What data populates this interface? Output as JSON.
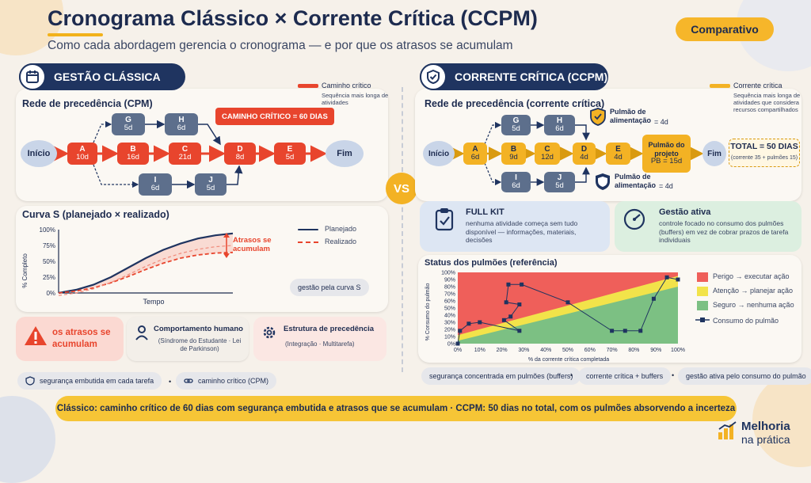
{
  "header": {
    "title": "Cronograma Clássico × Corrente Crítica (CCPM)",
    "subtitle": "Como cada abordagem gerencia o cronograma — e por que os atrasos se acumulam",
    "badge": "Comparativo"
  },
  "vs_label": "VS",
  "colors": {
    "navy": "#1f3460",
    "red": "#e8452d",
    "amber": "#f3b224",
    "slate": "#5d6f8c",
    "green": "#7cc083",
    "yellow": "#f2e34a",
    "danger": "#ef5f5a"
  },
  "classic": {
    "section_title": "GESTÃO CLÁSSICA",
    "section_icon": "calendar-icon",
    "legend_title": "Caminho crítico",
    "legend_desc": "Sequência mais longa de atividades",
    "network_title": "Rede de precedência (CPM)",
    "critical_callout": "CAMINHO CRÍTICO = 60 DIAS",
    "nodes": {
      "start": "Início",
      "end": "Fim",
      "A": {
        "name": "A",
        "dur": "10d"
      },
      "B": {
        "name": "B",
        "dur": "16d"
      },
      "C": {
        "name": "C",
        "dur": "21d"
      },
      "D": {
        "name": "D",
        "dur": "8d"
      },
      "E": {
        "name": "E",
        "dur": "5d"
      },
      "G": {
        "name": "G",
        "dur": "5d"
      },
      "H": {
        "name": "H",
        "dur": "6d"
      },
      "I": {
        "name": "I",
        "dur": "6d"
      },
      "J": {
        "name": "J",
        "dur": "5d"
      }
    },
    "scurve": {
      "title": "Curva S (planejado × realizado)",
      "y_axis_label": "% Completo",
      "x_axis_label": "Tempo",
      "y_ticks": [
        "100%",
        "75%",
        "50%",
        "25%",
        "0%"
      ],
      "legend_planned": "Planejado",
      "legend_actual": "Realizado",
      "annotation": "Atrasos se acumulam",
      "note": "gestão pela curva S"
    },
    "cards": {
      "alert": "os atrasos se acumulam",
      "human_title": "Comportamento humano",
      "human_desc": "(Síndrome do Estudante · Lei de Parkinson)",
      "structure_title": "Estrutura de precedência",
      "structure_desc": "(Integração · Multitarefa)"
    },
    "chips": [
      "segurança embutida em cada tarefa",
      "caminho crítico (CPM)"
    ]
  },
  "ccpm": {
    "section_title": "CORRENTE CRÍTICA (CCPM)",
    "section_icon": "shield-check-icon",
    "legend_title": "Corrente crítica",
    "legend_desc": "Sequência mais longa de atividades que considera recursos compartilhados",
    "network_title": "Rede de precedência (corrente crítica)",
    "nodes": {
      "start": "Início",
      "end": "Fim",
      "A": {
        "name": "A",
        "dur": "6d"
      },
      "B": {
        "name": "B",
        "dur": "9d"
      },
      "C": {
        "name": "C",
        "dur": "12d"
      },
      "D": {
        "name": "D",
        "dur": "4d"
      },
      "E": {
        "name": "E",
        "dur": "4d"
      },
      "G": {
        "name": "G",
        "dur": "5d"
      },
      "H": {
        "name": "H",
        "dur": "6d"
      },
      "I": {
        "name": "I",
        "dur": "6d"
      },
      "J": {
        "name": "J",
        "dur": "5d"
      },
      "PB": {
        "name": "Pulmão do projeto",
        "dur": "PB = 15d"
      }
    },
    "feeding_buffer_top": {
      "label": "Pulmão de alimentação",
      "value": "= 4d"
    },
    "feeding_buffer_bottom": {
      "label": "Pulmão de alimentação",
      "value": "= 4d"
    },
    "total_title": "TOTAL = 50 DIAS",
    "total_sub": "(corrente 35 + pulmões 15)",
    "fullkit": {
      "title": "FULL KIT",
      "desc": "nenhuma atividade começa sem tudo disponível — informações, materiais, decisões"
    },
    "active": {
      "title": "Gestão ativa",
      "desc": "controle focado no consumo dos pulmões (buffers) em vez de cobrar prazos de tarefa individuais"
    },
    "fever": {
      "title": "Status dos pulmões (referência)",
      "y_axis_label": "% Consumo do pulmão",
      "x_axis_label": "% da corrente crítica completada",
      "legend": [
        "Perigo → executar ação",
        "Atenção → planejar ação",
        "Seguro → nenhuma ação",
        "Consumo do pulmão"
      ]
    },
    "chips": [
      "segurança concentrada em pulmões (buffers)",
      "corrente crítica + buffers",
      "gestão ativa pelo consumo do pulmão"
    ]
  },
  "chart_data": [
    {
      "type": "line",
      "title": "Curva S (planejado × realizado)",
      "xlabel": "Tempo",
      "ylabel": "% Completo",
      "ylim": [
        0,
        100
      ],
      "x": [
        0,
        10,
        20,
        30,
        40,
        50,
        60,
        70,
        80,
        90,
        100
      ],
      "series": [
        {
          "name": "Planejado",
          "values": [
            0,
            5,
            13,
            25,
            40,
            55,
            68,
            78,
            86,
            91,
            94
          ]
        },
        {
          "name": "Realizado",
          "values": [
            0,
            3,
            8,
            16,
            26,
            37,
            47,
            55,
            60,
            63,
            64
          ]
        }
      ]
    },
    {
      "type": "line",
      "title": "Status dos pulmões (referência)",
      "xlabel": "% da corrente crítica completada",
      "ylabel": "% Consumo do pulmão",
      "xlim": [
        0,
        100
      ],
      "ylim": [
        0,
        100
      ],
      "x_ticks": [
        "0%",
        "10%",
        "20%",
        "30%",
        "40%",
        "50%",
        "60%",
        "70%",
        "80%",
        "90%",
        "100%"
      ],
      "y_ticks": [
        "0%",
        "10%",
        "20%",
        "30%",
        "40%",
        "50%",
        "60%",
        "70%",
        "80%",
        "90%",
        "100%"
      ],
      "zones": [
        "Perigo",
        "Atenção",
        "Seguro"
      ],
      "series": [
        {
          "name": "Consumo do pulmão",
          "points": [
            [
              0,
              0
            ],
            [
              1,
              18
            ],
            [
              5,
              28
            ],
            [
              10,
              30
            ],
            [
              28,
              18
            ],
            [
              21,
              33
            ],
            [
              24,
              38
            ],
            [
              28,
              55
            ],
            [
              22,
              58
            ],
            [
              23,
              83
            ],
            [
              29,
              83
            ],
            [
              50,
              58
            ],
            [
              70,
              18
            ],
            [
              76,
              18
            ],
            [
              83,
              18
            ],
            [
              89,
              63
            ],
            [
              95,
              93
            ],
            [
              100,
              90
            ]
          ]
        }
      ]
    }
  ],
  "footer": {
    "text": "Clássico: caminho crítico de 60 dias com segurança embutida e atrasos que se acumulam   ·   CCPM: 50 dias no total, com os pulmões absorvendo a incerteza",
    "brand_line1": "Melhoria",
    "brand_line2": "na prática"
  }
}
